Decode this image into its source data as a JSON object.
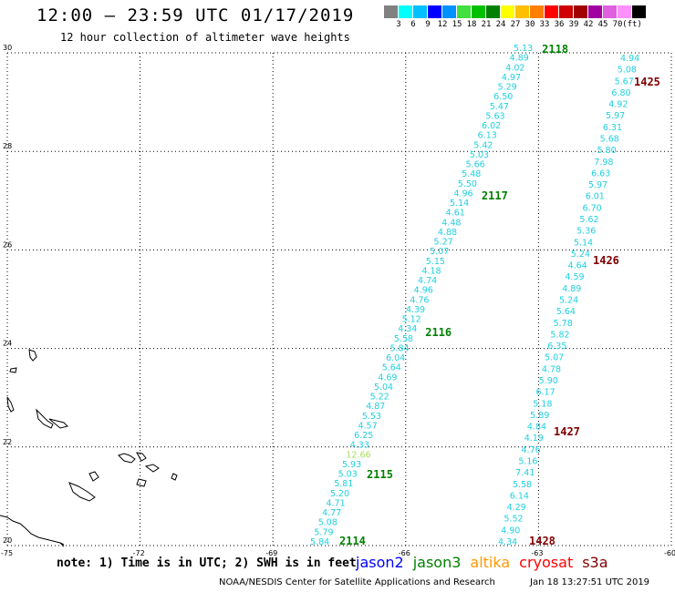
{
  "header": {
    "title": "12:00 — 23:59 UTC 01/17/2019",
    "subtitle": "12 hour collection of altimeter wave heights"
  },
  "color_scale": {
    "colors": [
      "#808080",
      "#00ffff",
      "#00c0ff",
      "#0000ff",
      "#0090ff",
      "#40e040",
      "#00c000",
      "#008000",
      "#ffff00",
      "#ffc000",
      "#ff8000",
      "#ff0000",
      "#d00000",
      "#a00000",
      "#a000a0",
      "#e060e0",
      "#ff90ff",
      "#000000"
    ],
    "labels": [
      "3",
      "6",
      "9",
      "12",
      "15",
      "18",
      "21",
      "24",
      "27",
      "30",
      "33",
      "36",
      "39",
      "42",
      "45",
      "70",
      "(ft)"
    ]
  },
  "map": {
    "lon_ticks": [
      "-75",
      "-72",
      "-69",
      "-66",
      "-63",
      "-60"
    ],
    "lat_ticks": [
      "20",
      "22",
      "24",
      "26",
      "28",
      "30"
    ],
    "tracks": [
      {
        "values": [
          "5.84",
          "5.79",
          "5.08",
          "4.77",
          "4.71",
          "5.20",
          "5.81",
          "5.03",
          "5.93",
          "12.66",
          "4.33",
          "6.25",
          "4.57",
          "5.53",
          "4.87",
          "5.22",
          "5.04",
          "4.69",
          "5.64",
          "6.04",
          "5.84",
          "5.58",
          "4.34",
          "5.12",
          "4.39",
          "4.76",
          "4.96",
          "4.74",
          "4.18",
          "5.15",
          "5.07",
          "5.27",
          "4.88",
          "4.48",
          "4.61",
          "5.14",
          "4.96",
          "5.50",
          "5.48",
          "5.66",
          "5.03",
          "5.42",
          "6.13",
          "6.02",
          "5.63",
          "5.47",
          "6.50",
          "5.29",
          "4.97",
          "4.02",
          "4.89",
          "5.13"
        ],
        "time_labels": [
          {
            "text": "2114",
            "color": "#008000"
          },
          {
            "text": "2115",
            "color": "#008000"
          },
          {
            "text": "2116",
            "color": "#008000"
          },
          {
            "text": "2117",
            "color": "#008000"
          },
          {
            "text": "2118",
            "color": "#008000"
          }
        ]
      },
      {
        "values": [
          "4.34",
          "4.90",
          "5.52",
          "4.29",
          "6.14",
          "5.58",
          "7.41",
          "5.16",
          "4.76",
          "4.19",
          "4.84",
          "5.89",
          "5.18",
          "6.17",
          "5.90",
          "4.78",
          "5.07",
          "6.35",
          "5.82",
          "5.78",
          "5.64",
          "5.24",
          "4.89",
          "4.59",
          "4.64",
          "5.24",
          "5.14",
          "5.36",
          "5.62",
          "6.70",
          "6.01",
          "5.97",
          "6.63",
          "7.98",
          "5.80",
          "5.68",
          "6.31",
          "5.97",
          "4.92",
          "6.80",
          "5.67",
          "5.08",
          "4.94"
        ],
        "time_labels": [
          {
            "text": "1428",
            "color": "#800000"
          },
          {
            "text": "1427",
            "color": "#800000"
          },
          {
            "text": "1426",
            "color": "#800000"
          },
          {
            "text": "1425",
            "color": "#800000"
          }
        ]
      }
    ]
  },
  "footer": {
    "note": "note: 1) Time is in UTC; 2) SWH is in feet",
    "legend": [
      {
        "text": "jason2",
        "color": "#0000ff"
      },
      {
        "text": "jason3",
        "color": "#008000"
      },
      {
        "text": "altika",
        "color": "#ff9900"
      },
      {
        "text": "cryosat",
        "color": "#ff0000"
      },
      {
        "text": "s3a",
        "color": "#800000"
      }
    ],
    "credit": "NOAA/NESDIS Center for Satellite Applications and Research",
    "timestamp": "Jan 18 13:27:51 UTC 2019"
  }
}
